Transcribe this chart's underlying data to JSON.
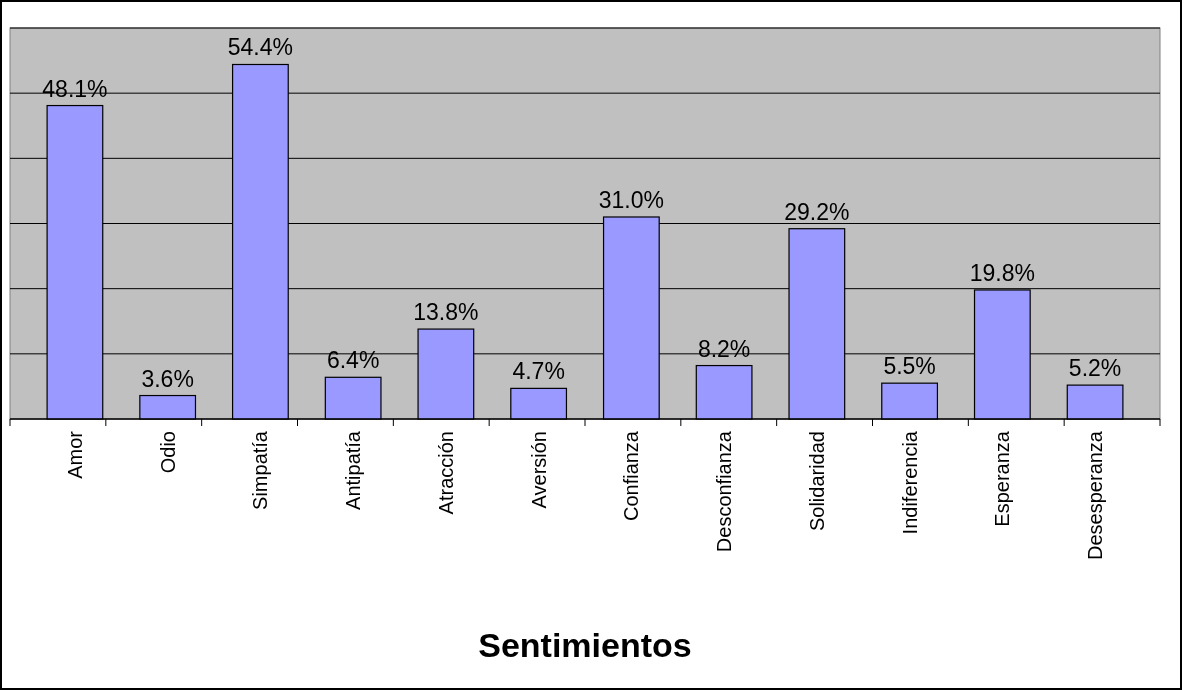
{
  "chart_data": {
    "type": "bar",
    "xlabel": "Sentimientos",
    "categories": [
      "Amor",
      "Odio",
      "Simpatía",
      "Antipatía",
      "Atracción",
      "Aversión",
      "Confianza",
      "Desconfianza",
      "Solidaridad",
      "Indiferencia",
      "Esperanza",
      "Desesperanza"
    ],
    "values": [
      48.1,
      3.6,
      54.4,
      6.4,
      13.8,
      4.7,
      31.0,
      8.2,
      29.2,
      5.5,
      19.8,
      5.2
    ],
    "value_labels": [
      "48.1%",
      "3.6%",
      "54.4%",
      "6.4%",
      "13.8%",
      "4.7%",
      "31.0%",
      "8.2%",
      "29.2%",
      "5.5%",
      "19.8%",
      "5.2%"
    ],
    "color": "#9999ff",
    "ylim": [
      0,
      60
    ],
    "yticks": [
      {
        "value": 0,
        "label": null
      },
      {
        "value": 10,
        "label": null
      },
      {
        "value": 20,
        "label": null
      },
      {
        "value": 30,
        "label": null
      },
      {
        "value": 40,
        "label": null
      },
      {
        "value": 50,
        "label": null
      },
      {
        "value": 60,
        "label": null
      }
    ],
    "tick_labels": "x",
    "grid": "y"
  }
}
